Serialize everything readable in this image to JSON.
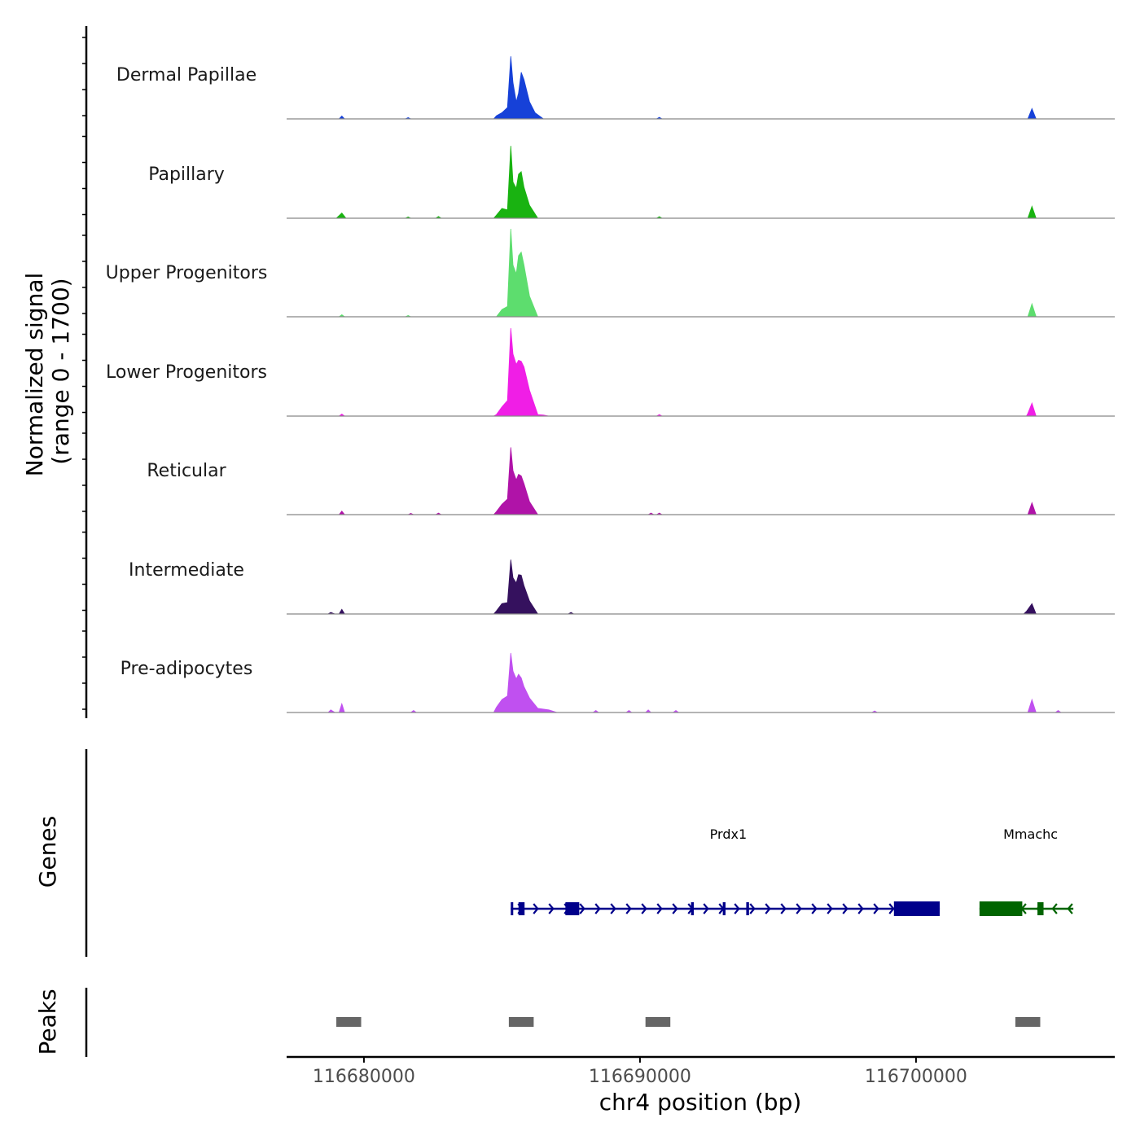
{
  "chart_data": {
    "type": "area",
    "title": "",
    "chromosome": "chr4",
    "xlabel": "chr4 position (bp)",
    "xlim": [
      116677200,
      116707200
    ],
    "x_ticks": [
      116680000,
      116690000,
      116700000
    ],
    "x_tick_labels": [
      "116680000",
      "116690000",
      "116700000"
    ],
    "signal_panel": {
      "ylabel_line1": "Normalized signal",
      "ylabel_line2": "(range 0 - 1700)",
      "ylim": [
        0,
        1700
      ]
    },
    "series": [
      {
        "name": "Dermal Papillae",
        "color": "#1641d8",
        "points": [
          [
            116677200,
            0
          ],
          [
            116679100,
            0
          ],
          [
            116679200,
            55
          ],
          [
            116679300,
            0
          ],
          [
            116681500,
            0
          ],
          [
            116681600,
            25
          ],
          [
            116681700,
            0
          ],
          [
            116684700,
            0
          ],
          [
            116684800,
            60
          ],
          [
            116685000,
            120
          ],
          [
            116685200,
            220
          ],
          [
            116685320,
            1210
          ],
          [
            116685400,
            700
          ],
          [
            116685520,
            330
          ],
          [
            116685600,
            500
          ],
          [
            116685700,
            900
          ],
          [
            116685800,
            760
          ],
          [
            116686000,
            330
          ],
          [
            116686200,
            120
          ],
          [
            116686500,
            0
          ],
          [
            116690600,
            0
          ],
          [
            116690700,
            30
          ],
          [
            116690800,
            0
          ],
          [
            116704050,
            0
          ],
          [
            116704200,
            200
          ],
          [
            116704350,
            0
          ],
          [
            116707200,
            0
          ]
        ]
      },
      {
        "name": "Papillary",
        "color": "#19b311",
        "points": [
          [
            116677200,
            0
          ],
          [
            116679000,
            0
          ],
          [
            116679200,
            100
          ],
          [
            116679350,
            0
          ],
          [
            116681500,
            0
          ],
          [
            116681600,
            25
          ],
          [
            116681700,
            0
          ],
          [
            116682600,
            0
          ],
          [
            116682700,
            35
          ],
          [
            116682800,
            0
          ],
          [
            116684700,
            0
          ],
          [
            116684800,
            60
          ],
          [
            116685000,
            190
          ],
          [
            116685200,
            160
          ],
          [
            116685320,
            1400
          ],
          [
            116685400,
            700
          ],
          [
            116685520,
            580
          ],
          [
            116685600,
            850
          ],
          [
            116685700,
            900
          ],
          [
            116685800,
            600
          ],
          [
            116686000,
            250
          ],
          [
            116686300,
            0
          ],
          [
            116690600,
            0
          ],
          [
            116690700,
            30
          ],
          [
            116690800,
            0
          ],
          [
            116704050,
            0
          ],
          [
            116704200,
            230
          ],
          [
            116704350,
            0
          ],
          [
            116707200,
            0
          ]
        ]
      },
      {
        "name": "Upper Progenitors",
        "color": "#5ddd6e",
        "points": [
          [
            116677200,
            0
          ],
          [
            116679100,
            0
          ],
          [
            116679200,
            40
          ],
          [
            116679300,
            0
          ],
          [
            116681500,
            0
          ],
          [
            116681600,
            25
          ],
          [
            116681700,
            0
          ],
          [
            116684800,
            0
          ],
          [
            116685000,
            140
          ],
          [
            116685200,
            200
          ],
          [
            116685320,
            1700
          ],
          [
            116685400,
            1000
          ],
          [
            116685520,
            830
          ],
          [
            116685600,
            1180
          ],
          [
            116685700,
            1250
          ],
          [
            116685800,
            1000
          ],
          [
            116686000,
            400
          ],
          [
            116686300,
            0
          ],
          [
            116704050,
            0
          ],
          [
            116704200,
            250
          ],
          [
            116704350,
            0
          ],
          [
            116707200,
            0
          ]
        ]
      },
      {
        "name": "Lower Progenitors",
        "color": "#f01ee6",
        "points": [
          [
            116677200,
            0
          ],
          [
            116679100,
            0
          ],
          [
            116679200,
            40
          ],
          [
            116679300,
            0
          ],
          [
            116684700,
            0
          ],
          [
            116684800,
            30
          ],
          [
            116685000,
            180
          ],
          [
            116685200,
            300
          ],
          [
            116685320,
            1700
          ],
          [
            116685400,
            1200
          ],
          [
            116685520,
            1000
          ],
          [
            116685600,
            1080
          ],
          [
            116685700,
            1060
          ],
          [
            116685800,
            950
          ],
          [
            116686000,
            500
          ],
          [
            116686300,
            30
          ],
          [
            116686500,
            20
          ],
          [
            116686700,
            0
          ],
          [
            116690600,
            0
          ],
          [
            116690700,
            30
          ],
          [
            116690800,
            0
          ],
          [
            116704000,
            0
          ],
          [
            116704050,
            50
          ],
          [
            116704200,
            250
          ],
          [
            116704350,
            0
          ],
          [
            116707200,
            0
          ]
        ]
      },
      {
        "name": "Reticular",
        "color": "#b013a8",
        "points": [
          [
            116677200,
            0
          ],
          [
            116679100,
            0
          ],
          [
            116679200,
            70
          ],
          [
            116679300,
            0
          ],
          [
            116681600,
            0
          ],
          [
            116681700,
            25
          ],
          [
            116681800,
            0
          ],
          [
            116682600,
            0
          ],
          [
            116682700,
            30
          ],
          [
            116682800,
            0
          ],
          [
            116684700,
            0
          ],
          [
            116684800,
            60
          ],
          [
            116685000,
            200
          ],
          [
            116685200,
            300
          ],
          [
            116685320,
            1300
          ],
          [
            116685400,
            850
          ],
          [
            116685520,
            670
          ],
          [
            116685600,
            780
          ],
          [
            116685700,
            750
          ],
          [
            116685800,
            600
          ],
          [
            116686000,
            250
          ],
          [
            116686300,
            0
          ],
          [
            116690300,
            0
          ],
          [
            116690400,
            30
          ],
          [
            116690500,
            0
          ],
          [
            116690600,
            0
          ],
          [
            116690700,
            30
          ],
          [
            116690800,
            0
          ],
          [
            116704050,
            0
          ],
          [
            116704200,
            230
          ],
          [
            116704350,
            0
          ],
          [
            116707200,
            0
          ]
        ]
      },
      {
        "name": "Intermediate",
        "color": "#35115e",
        "points": [
          [
            116677200,
            0
          ],
          [
            116678700,
            0
          ],
          [
            116678800,
            30
          ],
          [
            116678950,
            0
          ],
          [
            116679100,
            0
          ],
          [
            116679200,
            90
          ],
          [
            116679300,
            0
          ],
          [
            116684700,
            0
          ],
          [
            116684800,
            60
          ],
          [
            116685000,
            200
          ],
          [
            116685200,
            220
          ],
          [
            116685320,
            1050
          ],
          [
            116685400,
            700
          ],
          [
            116685520,
            600
          ],
          [
            116685600,
            760
          ],
          [
            116685700,
            750
          ],
          [
            116685800,
            550
          ],
          [
            116686000,
            250
          ],
          [
            116686300,
            0
          ],
          [
            116687400,
            0
          ],
          [
            116687500,
            30
          ],
          [
            116687600,
            0
          ],
          [
            116703900,
            0
          ],
          [
            116704000,
            50
          ],
          [
            116704200,
            200
          ],
          [
            116704350,
            0
          ],
          [
            116707200,
            0
          ]
        ]
      },
      {
        "name": "Pre-adipocytes",
        "color": "#c050f0",
        "points": [
          [
            116677200,
            0
          ],
          [
            116678700,
            0
          ],
          [
            116678800,
            50
          ],
          [
            116678950,
            0
          ],
          [
            116679100,
            0
          ],
          [
            116679200,
            170
          ],
          [
            116679300,
            0
          ],
          [
            116681700,
            0
          ],
          [
            116681800,
            40
          ],
          [
            116681900,
            0
          ],
          [
            116684700,
            0
          ],
          [
            116684800,
            100
          ],
          [
            116685000,
            250
          ],
          [
            116685200,
            320
          ],
          [
            116685320,
            1150
          ],
          [
            116685400,
            800
          ],
          [
            116685520,
            650
          ],
          [
            116685600,
            740
          ],
          [
            116685700,
            670
          ],
          [
            116685800,
            500
          ],
          [
            116686000,
            280
          ],
          [
            116686300,
            80
          ],
          [
            116686700,
            50
          ],
          [
            116687000,
            0
          ],
          [
            116688300,
            0
          ],
          [
            116688400,
            40
          ],
          [
            116688500,
            0
          ],
          [
            116689500,
            0
          ],
          [
            116689600,
            40
          ],
          [
            116689700,
            0
          ],
          [
            116690200,
            0
          ],
          [
            116690300,
            50
          ],
          [
            116690400,
            0
          ],
          [
            116691200,
            0
          ],
          [
            116691300,
            40
          ],
          [
            116691400,
            0
          ],
          [
            116698400,
            0
          ],
          [
            116698500,
            30
          ],
          [
            116698600,
            0
          ],
          [
            116704050,
            0
          ],
          [
            116704200,
            250
          ],
          [
            116704350,
            0
          ],
          [
            116705050,
            0
          ],
          [
            116705150,
            40
          ],
          [
            116705250,
            0
          ],
          [
            116707200,
            0
          ]
        ]
      }
    ],
    "genes_panel": {
      "ylabel": "Genes",
      "genes": [
        {
          "name": "Prdx1",
          "strand": "+",
          "color": "#00008b",
          "start": 116685320,
          "end": 116700860,
          "label_x": 116693200,
          "exons": [
            [
              116685320,
              116685400
            ],
            [
              116685600,
              116685820
            ],
            [
              116687300,
              116687800
            ],
            [
              116691850,
              116691950
            ],
            [
              116693000,
              116693100
            ],
            [
              116693850,
              116693950
            ],
            [
              116699200,
              116700860
            ]
          ]
        },
        {
          "name": "Mmachc",
          "strand": "-",
          "color": "#006400",
          "start": 116702300,
          "end": 116705700,
          "label_x": 116704150,
          "exons": [
            [
              116702300,
              116703850
            ],
            [
              116704400,
              116704620
            ]
          ]
        }
      ]
    },
    "peaks_panel": {
      "ylabel": "Peaks",
      "color": "#666666",
      "peaks": [
        [
          116679000,
          116679900
        ],
        [
          116685250,
          116686150
        ],
        [
          116690200,
          116691100
        ],
        [
          116703600,
          116704500
        ]
      ]
    }
  }
}
